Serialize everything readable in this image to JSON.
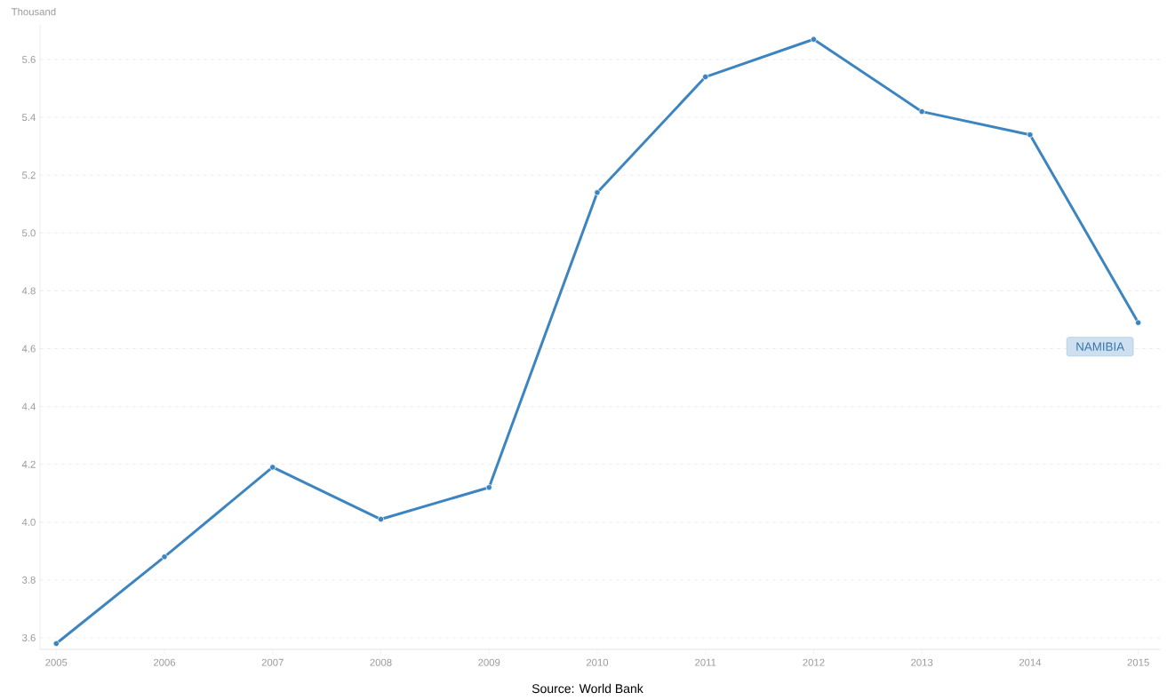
{
  "chart_data": {
    "type": "line",
    "ylabel": "Thousand",
    "annotations": [
      "Source: World Bank"
    ],
    "x": [
      2005,
      2006,
      2007,
      2008,
      2009,
      2010,
      2011,
      2012,
      2013,
      2014,
      2015
    ],
    "series": [
      {
        "name": "NAMIBIA",
        "color": "#3d85c0",
        "values": [
          3.58,
          3.88,
          4.19,
          4.01,
          4.12,
          5.14,
          5.54,
          5.67,
          5.42,
          5.34,
          4.69
        ]
      }
    ],
    "xlim": [
      2004.85,
      2015.2
    ],
    "ylim": [
      3.56,
      5.72
    ],
    "xticks": [
      2005,
      2006,
      2007,
      2008,
      2009,
      2010,
      2011,
      2012,
      2013,
      2014,
      2015
    ],
    "yticks": [
      {
        "value": 3.6,
        "label": "3.6"
      },
      {
        "value": 3.8,
        "label": "3.8"
      },
      {
        "value": 4.0,
        "label": "4.0"
      },
      {
        "value": 4.2,
        "label": "4.2"
      },
      {
        "value": 4.4,
        "label": "4.4"
      },
      {
        "value": 4.6,
        "label": "4.6"
      },
      {
        "value": 4.8,
        "label": "4.8"
      },
      {
        "value": 5.0,
        "label": "5.0"
      },
      {
        "value": 5.2,
        "label": "5.2"
      },
      {
        "value": 5.4,
        "label": "5.4"
      },
      {
        "value": 5.6,
        "label": "5.6"
      }
    ],
    "grid": "y",
    "marker": "circle",
    "line_style": "solid"
  }
}
